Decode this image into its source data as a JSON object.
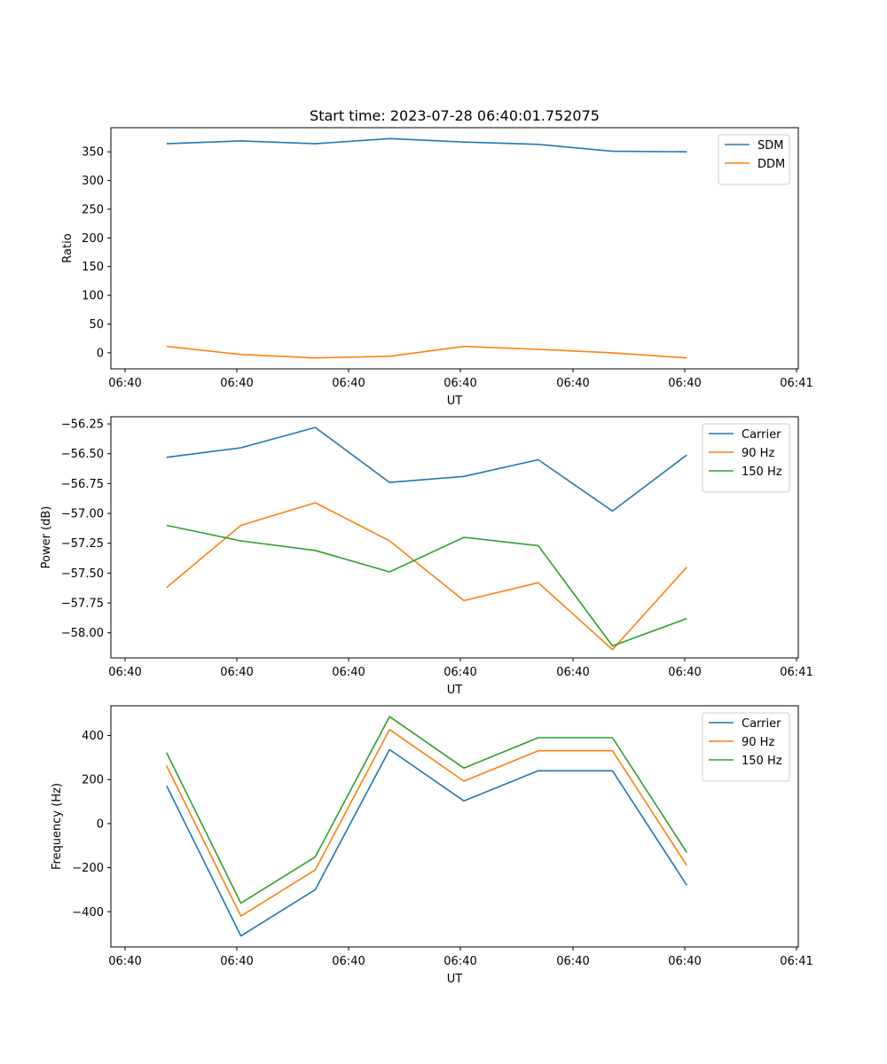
{
  "chart_data": [
    {
      "type": "line",
      "title": "Start time: 2023-07-28 06:40:01.752075",
      "xlabel": "UT",
      "ylabel": "Ratio",
      "x_tick_labels": [
        "06:40",
        "06:40",
        "06:40",
        "06:40",
        "06:40",
        "06:40",
        "06:41"
      ],
      "y_ticks": [
        0,
        50,
        100,
        150,
        200,
        250,
        300,
        350
      ],
      "y_tick_labels": [
        "0",
        "50",
        "100",
        "150",
        "200",
        "250",
        "300",
        "350"
      ],
      "ylim": [
        -28,
        392
      ],
      "point_index_range": [
        -0.75,
        8.5
      ],
      "legend_position": "top-right",
      "series": [
        {
          "name": "SDM",
          "color": "#1f77b4",
          "values": [
            364,
            369,
            364,
            373,
            367,
            363,
            351,
            350
          ]
        },
        {
          "name": "DDM",
          "color": "#ff7f0e",
          "values": [
            11,
            -3,
            -9,
            -6,
            11,
            6,
            0,
            -9
          ]
        }
      ]
    },
    {
      "type": "line",
      "title": "",
      "xlabel": "UT",
      "ylabel": "Power (dB)",
      "x_tick_labels": [
        "06:40",
        "06:40",
        "06:40",
        "06:40",
        "06:40",
        "06:40",
        "06:41"
      ],
      "y_ticks": [
        -58.0,
        -57.75,
        -57.5,
        -57.25,
        -57.0,
        -56.75,
        -56.5,
        -56.25
      ],
      "y_tick_labels": [
        "−58.00",
        "−57.75",
        "−57.50",
        "−57.25",
        "−57.00",
        "−56.75",
        "−56.50",
        "−56.25"
      ],
      "ylim": [
        -58.21,
        -56.19
      ],
      "point_index_range": [
        -0.75,
        8.5
      ],
      "legend_position": "top-right",
      "series": [
        {
          "name": "Carrier",
          "color": "#1f77b4",
          "values": [
            -56.53,
            -56.45,
            -56.28,
            -56.74,
            -56.69,
            -56.55,
            -56.98,
            -56.51
          ]
        },
        {
          "name": "90 Hz",
          "color": "#ff7f0e",
          "values": [
            -57.62,
            -57.1,
            -56.91,
            -57.23,
            -57.73,
            -57.58,
            -58.14,
            -57.45
          ]
        },
        {
          "name": "150 Hz",
          "color": "#2ca02c",
          "values": [
            -57.1,
            -57.23,
            -57.31,
            -57.49,
            -57.2,
            -57.27,
            -58.11,
            -57.88
          ]
        }
      ]
    },
    {
      "type": "line",
      "title": "",
      "xlabel": "UT",
      "ylabel": "Frequency (Hz)",
      "x_tick_labels": [
        "06:40",
        "06:40",
        "06:40",
        "06:40",
        "06:40",
        "06:40",
        "06:41"
      ],
      "y_ticks": [
        -400,
        -200,
        0,
        200,
        400
      ],
      "y_tick_labels": [
        "−400",
        "−200",
        "0",
        "200",
        "400"
      ],
      "ylim": [
        -560,
        535
      ],
      "point_index_range": [
        -0.75,
        8.5
      ],
      "legend_position": "top-right",
      "series": [
        {
          "name": "Carrier",
          "color": "#1f77b4",
          "values": [
            172,
            -510,
            -300,
            336,
            103,
            240,
            240,
            -280
          ]
        },
        {
          "name": "90 Hz",
          "color": "#ff7f0e",
          "values": [
            263,
            -420,
            -210,
            427,
            193,
            331,
            331,
            -190
          ]
        },
        {
          "name": "150 Hz",
          "color": "#2ca02c",
          "values": [
            322,
            -361,
            -151,
            486,
            252,
            390,
            390,
            -131
          ]
        }
      ]
    }
  ]
}
